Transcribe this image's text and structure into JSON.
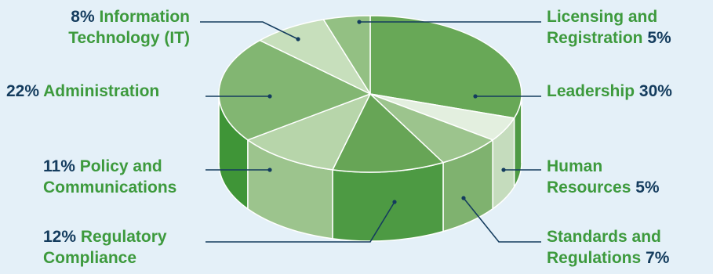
{
  "colors": {
    "background": "#e4f0f8",
    "label_green": "#3d9a3d",
    "label_navy": "#143c5e",
    "leader_line": "#143c5e"
  },
  "chart_data": {
    "type": "pie",
    "style": "3d",
    "title": "",
    "slices": [
      {
        "name": "Leadership",
        "value": 30,
        "value_label": "30%",
        "color": "#68a857",
        "side_color": "#4f9a45"
      },
      {
        "name": "Human Resources",
        "value": 5,
        "value_label": "5%",
        "color": "#e3efdf",
        "side_color": "#c5dcbd"
      },
      {
        "name": "Standards and Regulations",
        "value": 7,
        "value_label": "7%",
        "color": "#9cc48d",
        "side_color": "#7fb26f"
      },
      {
        "name": "Regulatory Compliance",
        "value": 12,
        "value_label": "12%",
        "color": "#67a556",
        "side_color": "#4d9a43"
      },
      {
        "name": "Policy and Communications",
        "value": 11,
        "value_label": "11%",
        "color": "#b7d5aa",
        "side_color": "#9cc48d"
      },
      {
        "name": "Administration",
        "value": 22,
        "value_label": "22%",
        "color": "#82b672",
        "side_color": "#3f9537"
      },
      {
        "name": "Information Technology (IT)",
        "value": 8,
        "value_label": "8%",
        "color": "#c7dfbc",
        "side_color": "#a9cc9b"
      },
      {
        "name": "Licensing and Registration",
        "value": 5,
        "value_label": "5%",
        "color": "#93c083",
        "side_color": "#7aae69"
      }
    ]
  },
  "labels": {
    "leadership": {
      "name": "Leadership",
      "pct": "30%"
    },
    "human_resources": {
      "line1": "Human",
      "line2": "Resources",
      "pct": "5%"
    },
    "standards": {
      "line1": "Standards and",
      "line2": "Regulations",
      "pct": "7%"
    },
    "regulatory": {
      "pct": "12%",
      "line1": "Regulatory",
      "line2": "Compliance"
    },
    "policy": {
      "pct": "11%",
      "line1": "Policy and",
      "line2": "Communications"
    },
    "administration": {
      "pct": "22%",
      "name": "Administration"
    },
    "it": {
      "pct": "8%",
      "line1": "Information",
      "line2": "Technology (IT)"
    },
    "licensing": {
      "line1": "Licensing and",
      "line2": "Registration",
      "pct": "5%"
    }
  }
}
